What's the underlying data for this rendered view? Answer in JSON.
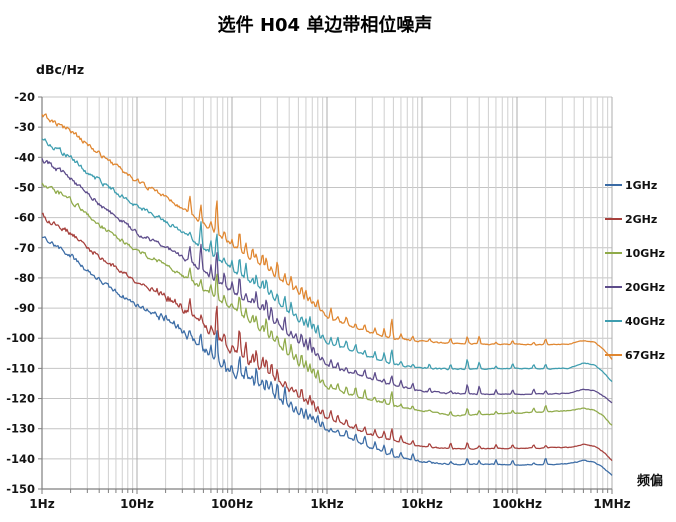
{
  "title": "选件 H04 单边带相位噪声",
  "chart_data": {
    "type": "line",
    "title": "选件 H04 单边带相位噪声",
    "ylabel": "dBc/Hz",
    "xlabel": "频偏",
    "x_scale": "log",
    "xlim_hz": [
      1,
      1000000
    ],
    "ylim_dbc_hz": [
      -150,
      -20
    ],
    "grid": true,
    "legend_position": "right",
    "y_ticks": [
      -20,
      -30,
      -40,
      -50,
      -60,
      -70,
      -80,
      -90,
      -100,
      -110,
      -120,
      -130,
      -140,
      -150
    ],
    "x_ticks": [
      {
        "hz": 1,
        "label": "1Hz"
      },
      {
        "hz": 10,
        "label": "10Hz"
      },
      {
        "hz": 100,
        "label": "100Hz"
      },
      {
        "hz": 1000,
        "label": "1kHz"
      },
      {
        "hz": 10000,
        "label": "10kHz"
      },
      {
        "hz": 100000,
        "label": "100kHz"
      },
      {
        "hz": 1000000,
        "label": "1MHz"
      }
    ],
    "anchor_freqs_hz": [
      1,
      2,
      3,
      5,
      10,
      20,
      30,
      50,
      100,
      200,
      300,
      500,
      1000,
      2000,
      3000,
      5000,
      10000,
      20000,
      50000,
      100000,
      200000,
      350000,
      500000,
      650000,
      800000,
      1000000
    ],
    "series": [
      {
        "name": "1GHz",
        "color": "#3a6ba5",
        "dbc_hz": [
          -66.5,
          -72.5,
          -77.5,
          -83,
          -89,
          -93.5,
          -97.5,
          -103.5,
          -111.5,
          -116.5,
          -120,
          -125,
          -130.5,
          -134,
          -136.5,
          -139,
          -141,
          -141.7,
          -141.8,
          -142,
          -141.9,
          -141.6,
          -140.6,
          -141.2,
          -142.8,
          -145.5
        ]
      },
      {
        "name": "2GHz",
        "color": "#a63f3b",
        "dbc_hz": [
          -59.5,
          -65,
          -70,
          -75,
          -81,
          -86,
          -90,
          -96,
          -104,
          -110,
          -114,
          -119.5,
          -126.5,
          -130,
          -132,
          -134,
          -136,
          -136.6,
          -136.6,
          -136.5,
          -136.4,
          -136.2,
          -135.2,
          -135.8,
          -137.5,
          -140.5
        ]
      },
      {
        "name": "10GHz",
        "color": "#8faa49",
        "dbc_hz": [
          -48.5,
          -54,
          -59,
          -64.5,
          -71,
          -75.5,
          -79,
          -84,
          -90,
          -97,
          -102,
          -108.5,
          -116.5,
          -119,
          -120.5,
          -122.3,
          -124,
          -125.6,
          -125.3,
          -124.8,
          -124.4,
          -124,
          -123.2,
          -123.8,
          -125.5,
          -129
        ]
      },
      {
        "name": "20GHz",
        "color": "#5c4b8a",
        "dbc_hz": [
          -40.5,
          -47,
          -52,
          -58,
          -65,
          -69.5,
          -73,
          -78,
          -84.5,
          -91,
          -95.5,
          -101.5,
          -109,
          -111.8,
          -113.5,
          -115.5,
          -117.5,
          -118.3,
          -118.6,
          -118.6,
          -118.5,
          -118.2,
          -116.9,
          -117.4,
          -119,
          -121.5
        ]
      },
      {
        "name": "40GHz",
        "color": "#3d9daf",
        "dbc_hz": [
          -34,
          -40,
          -45,
          -50,
          -56,
          -61,
          -65,
          -70,
          -77,
          -84,
          -88,
          -94,
          -101.5,
          -104.5,
          -106.5,
          -108.5,
          -110,
          -110.3,
          -110.2,
          -110,
          -110.2,
          -110,
          -108.2,
          -108.8,
          -111,
          -114.5
        ]
      },
      {
        "name": "67GHz",
        "color": "#e0862f",
        "dbc_hz": [
          -26,
          -31,
          -36,
          -41,
          -48,
          -53,
          -57,
          -62,
          -69,
          -76,
          -80,
          -85,
          -93,
          -96.5,
          -98.5,
          -100,
          -101,
          -101.7,
          -102,
          -102,
          -102.2,
          -102,
          -100.8,
          -101.2,
          -103.5,
          -107
        ]
      }
    ],
    "spurs_hz": [
      [
        36,
        5
      ],
      [
        47,
        7
      ],
      [
        60,
        4
      ],
      [
        69,
        13
      ],
      [
        83,
        4
      ],
      [
        100,
        3
      ],
      [
        120,
        9
      ],
      [
        140,
        5
      ],
      [
        165,
        4
      ],
      [
        180,
        7
      ],
      [
        210,
        4
      ],
      [
        230,
        6
      ],
      [
        260,
        4
      ],
      [
        300,
        5
      ],
      [
        360,
        5
      ],
      [
        420,
        4
      ],
      [
        470,
        3
      ],
      [
        540,
        4
      ],
      [
        600,
        3
      ],
      [
        660,
        4
      ],
      [
        720,
        3
      ],
      [
        800,
        3
      ],
      [
        900,
        2.5
      ],
      [
        1100,
        3
      ],
      [
        1300,
        3
      ],
      [
        1600,
        3
      ],
      [
        2000,
        3
      ],
      [
        2500,
        3
      ],
      [
        3200,
        2.5
      ],
      [
        4000,
        2.5
      ],
      [
        4800,
        6
      ],
      [
        6000,
        2
      ],
      [
        8000,
        2
      ],
      [
        12000,
        1.5
      ],
      [
        20000,
        2
      ],
      [
        30000,
        3
      ],
      [
        40000,
        2.5
      ],
      [
        60000,
        1.5
      ],
      [
        90000,
        1.5
      ],
      [
        150000,
        1.5
      ],
      [
        200000,
        2
      ]
    ],
    "noise_seed": 7
  }
}
